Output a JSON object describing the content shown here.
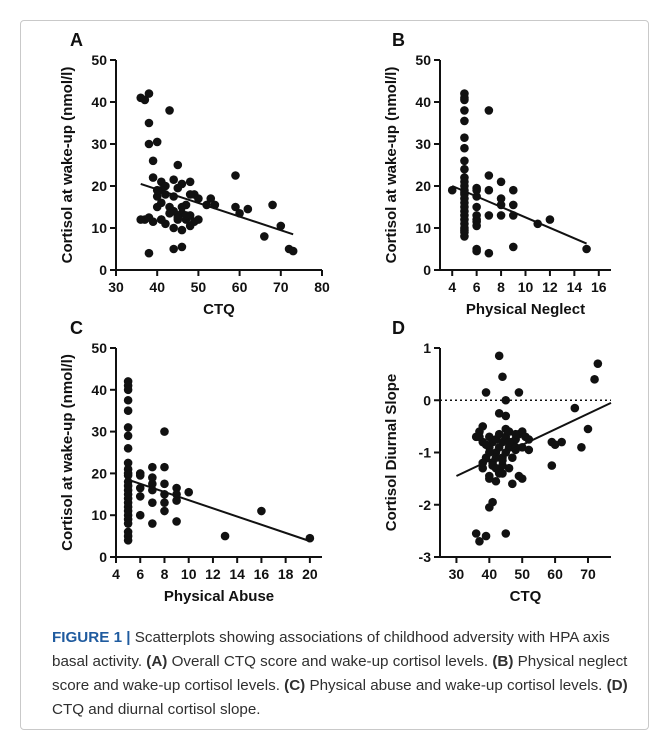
{
  "figure": {
    "caption_label": "FIGURE 1 |",
    "caption_intro": " Scatterplots showing associations of childhood adversity with HPA axis basal activity. ",
    "caption_parts": [
      {
        "ref": "(A)",
        "text": " Overall CTQ score and wake-up cortisol levels. "
      },
      {
        "ref": "(B)",
        "text": " Physical neglect score and wake-up cortisol levels. "
      },
      {
        "ref": "(C)",
        "text": " Physical abuse and wake-up cortisol levels. "
      },
      {
        "ref": "(D)",
        "text": " CTQ and diurnal cortisol slope."
      }
    ]
  },
  "chart_data": [
    {
      "panel": "A",
      "type": "scatter",
      "xlabel": "CTQ",
      "ylabel": "Cortisol at wake-up (nmol/l)",
      "xlim": [
        30,
        80
      ],
      "ylim": [
        0,
        50
      ],
      "xticks": [
        30,
        40,
        50,
        60,
        70,
        80
      ],
      "yticks": [
        0,
        10,
        20,
        30,
        40,
        50
      ],
      "x": [
        36,
        37,
        38,
        38,
        38,
        39,
        40,
        39,
        41,
        40,
        42,
        41,
        40,
        41,
        43,
        42,
        44,
        45,
        43,
        44,
        46,
        45,
        47,
        48,
        44,
        46,
        47,
        48,
        49,
        50,
        52,
        53,
        54,
        45,
        44,
        46,
        37,
        38,
        39,
        41,
        43,
        45,
        47,
        49,
        36,
        38,
        40,
        42,
        44,
        46,
        48,
        59,
        59,
        60,
        62,
        66,
        68,
        70,
        72,
        73,
        45,
        46,
        48,
        50,
        41
      ],
      "y": [
        41,
        40.5,
        42,
        35,
        30,
        26,
        30.5,
        22,
        21,
        17.5,
        20,
        19,
        15,
        16,
        15,
        18,
        21.5,
        25,
        38,
        17.5,
        20.5,
        19.5,
        15.5,
        21,
        14,
        13.5,
        12,
        13,
        18,
        17,
        15.5,
        17,
        15.5,
        13,
        10,
        9.5,
        12,
        12.5,
        11.5,
        12,
        13.5,
        12,
        13,
        11.5,
        12,
        4,
        19,
        11,
        5,
        5.5,
        10.5,
        22.5,
        15,
        13.5,
        14.5,
        8,
        15.5,
        10.5,
        5,
        4.5,
        12.5,
        15,
        18,
        12,
        12
      ],
      "fit": {
        "x": [
          36,
          73
        ],
        "y": [
          20.5,
          8.5
        ]
      }
    },
    {
      "panel": "B",
      "type": "scatter",
      "xlabel": "Physical Neglect",
      "ylabel": "Cortisol at wake-up (nmol/l)",
      "xlim": [
        3,
        17
      ],
      "ylim": [
        0,
        50
      ],
      "xticks": [
        4,
        6,
        8,
        10,
        12,
        14,
        16
      ],
      "yticks": [
        0,
        10,
        20,
        30,
        40,
        50
      ],
      "x": [
        4,
        5,
        5,
        5,
        5,
        5,
        5,
        5,
        5,
        5,
        5,
        5,
        5,
        5,
        5,
        5,
        5,
        5,
        5,
        5,
        5,
        5,
        5,
        5,
        5,
        5,
        5,
        6,
        6,
        6,
        6,
        6,
        6,
        6,
        6,
        6,
        6,
        7,
        7,
        7,
        7,
        7,
        8,
        8,
        8,
        8,
        9,
        9,
        9,
        9,
        11,
        12,
        15
      ],
      "y": [
        19,
        42,
        41,
        40.5,
        38,
        35.5,
        31.5,
        29,
        26,
        24,
        22,
        21,
        20,
        19,
        18.5,
        18,
        17,
        16,
        15,
        14,
        13,
        12,
        11,
        10,
        9,
        8,
        9.5,
        19.5,
        17.5,
        15,
        13,
        12,
        11.5,
        10.5,
        5,
        4.5,
        19,
        38,
        22.5,
        19,
        13,
        4,
        21,
        17,
        15.5,
        13,
        19,
        15.5,
        13,
        5.5,
        11,
        12,
        5
      ],
      "fit": {
        "x": [
          4,
          15
        ],
        "y": [
          20,
          6.3
        ]
      }
    },
    {
      "panel": "C",
      "type": "scatter",
      "xlabel": "Physical Abuse",
      "ylabel": "Cortisol at wake-up (nmol/l)",
      "xlim": [
        4,
        21
      ],
      "ylim": [
        0,
        50
      ],
      "xticks": [
        4,
        6,
        8,
        10,
        12,
        14,
        16,
        18,
        20
      ],
      "yticks": [
        0,
        10,
        20,
        30,
        40,
        50
      ],
      "x": [
        5,
        5,
        5,
        5,
        5,
        5,
        5,
        5,
        5,
        5,
        5,
        5,
        5,
        5,
        5,
        5,
        5,
        5,
        5,
        5,
        5,
        5,
        5,
        5,
        5,
        5,
        6,
        6,
        6,
        6,
        6,
        7,
        7,
        7,
        7,
        7,
        7,
        8,
        8,
        8,
        8,
        8,
        8,
        9,
        9,
        9,
        9,
        10,
        13,
        16,
        20
      ],
      "y": [
        42,
        41,
        40,
        37.5,
        35,
        31,
        29,
        26,
        22.5,
        21,
        19.5,
        18,
        17,
        16,
        15,
        14,
        13,
        12,
        11,
        10,
        9,
        8,
        6,
        5,
        4,
        20,
        20,
        19.5,
        16.5,
        14.5,
        10,
        21.5,
        19,
        17.5,
        16,
        13,
        8,
        30,
        21.5,
        17.5,
        15,
        13,
        11,
        16.5,
        15,
        13.5,
        8.5,
        15.5,
        5,
        11,
        4.5
      ],
      "fit": {
        "x": [
          5,
          20
        ],
        "y": [
          18.5,
          3.8
        ]
      }
    },
    {
      "panel": "D",
      "type": "scatter",
      "xlabel": "CTQ",
      "ylabel": "Cortisol Diurnal Slope",
      "xlim": [
        25,
        77
      ],
      "ylim": [
        -3,
        1
      ],
      "xticks": [
        30,
        40,
        50,
        60,
        70
      ],
      "yticks": [
        -3,
        -2,
        -1,
        0,
        1
      ],
      "reference_line_y": 0,
      "x": [
        36,
        37,
        38,
        38,
        39,
        40,
        40,
        41,
        41,
        42,
        42,
        43,
        43,
        44,
        44,
        45,
        45,
        46,
        46,
        47,
        48,
        48,
        49,
        50,
        51,
        52,
        38,
        39,
        40,
        41,
        42,
        43,
        44,
        45,
        46,
        47,
        48,
        49,
        50,
        36,
        37,
        39,
        40,
        41,
        42,
        43,
        44,
        45,
        38,
        40,
        42,
        44,
        46,
        48,
        50,
        52,
        43,
        44,
        45,
        49,
        59,
        60,
        62,
        66,
        68,
        70,
        72,
        73,
        37,
        39,
        40,
        43,
        45,
        47,
        59
      ],
      "y": [
        -0.7,
        -0.6,
        -0.5,
        -0.8,
        -1.1,
        -0.9,
        -0.7,
        -0.8,
        -1.2,
        -0.75,
        -1.0,
        -0.65,
        -0.9,
        -0.8,
        -1.1,
        -0.7,
        -0.55,
        -0.6,
        -0.9,
        -0.8,
        -0.75,
        -0.95,
        -0.65,
        -0.6,
        -0.7,
        -0.95,
        -1.3,
        -0.85,
        -1.0,
        -1.25,
        -1.1,
        -1.35,
        -1.4,
        -1.0,
        -1.3,
        -1.1,
        -0.9,
        -1.45,
        -1.5,
        -2.55,
        -2.7,
        -2.6,
        -2.05,
        -1.95,
        -1.55,
        -1.4,
        -1.25,
        -0.3,
        -1.2,
        -1.45,
        -1.3,
        -1.15,
        -0.8,
        -0.65,
        -0.9,
        -0.75,
        0.85,
        0.45,
        0.0,
        0.15,
        -0.8,
        -0.85,
        -0.8,
        -0.15,
        -0.9,
        -0.55,
        0.4,
        0.7,
        -0.7,
        0.15,
        -1.5,
        -0.25,
        -2.55,
        -1.6,
        -1.25
      ],
      "fit": {
        "x": [
          30,
          77
        ],
        "y": [
          -1.45,
          -0.05
        ]
      }
    }
  ]
}
